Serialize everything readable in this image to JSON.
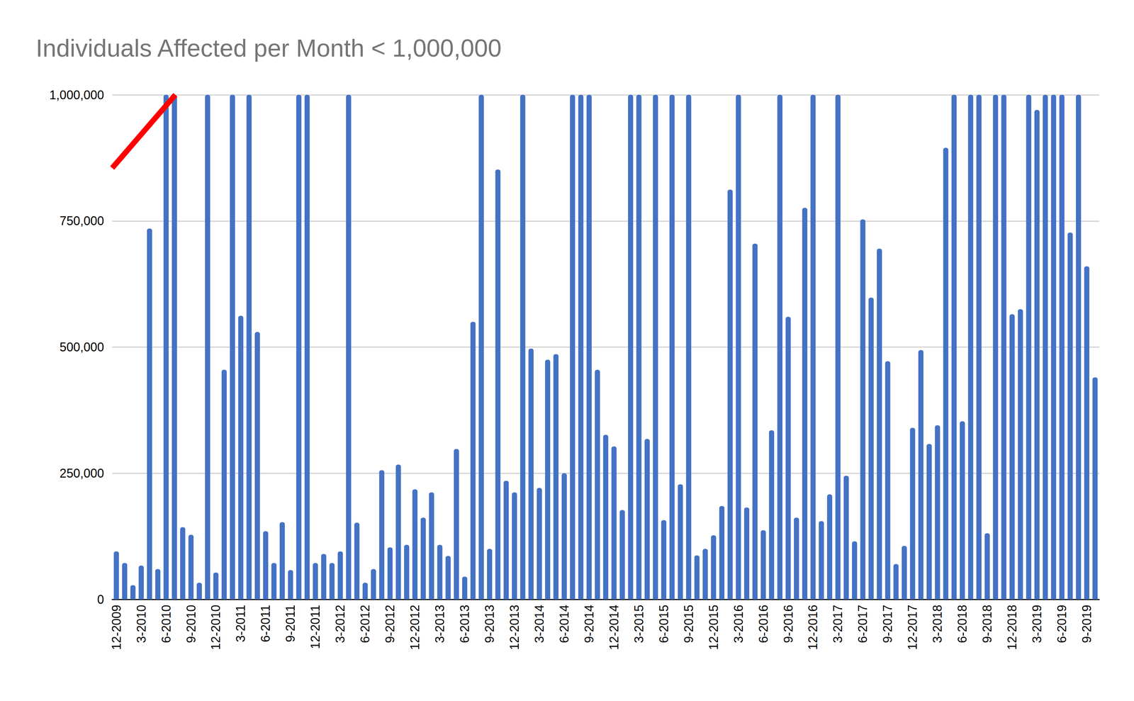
{
  "chart_data": {
    "type": "bar",
    "title": "Individuals Affected per Month < 1,000,000",
    "categories": [
      "12-2009",
      null,
      null,
      "3-2010",
      null,
      null,
      "6-2010",
      null,
      null,
      "9-2010",
      null,
      null,
      "12-2010",
      null,
      null,
      "3-2011",
      null,
      null,
      "6-2011",
      null,
      null,
      "9-2011",
      null,
      null,
      "12-2011",
      null,
      null,
      "3-2012",
      null,
      null,
      "6-2012",
      null,
      null,
      "9-2012",
      null,
      null,
      "12-2012",
      null,
      null,
      "3-2013",
      null,
      null,
      "6-2013",
      null,
      null,
      "9-2013",
      null,
      null,
      "12-2013",
      null,
      null,
      "3-2014",
      null,
      null,
      "6-2014",
      null,
      null,
      "9-2014",
      null,
      null,
      "12-2014",
      null,
      null,
      "3-2015",
      null,
      null,
      "6-2015",
      null,
      null,
      "9-2015",
      null,
      null,
      "12-2015",
      null,
      null,
      "3-2016",
      null,
      null,
      "6-2016",
      null,
      null,
      "9-2016",
      null,
      null,
      "12-2016",
      null,
      null,
      "3-2017",
      null,
      null,
      "6-2017",
      null,
      null,
      "9-2017",
      null,
      null,
      "12-2017",
      null,
      null,
      "3-2018",
      null,
      null,
      "6-2018",
      null,
      null,
      "9-2018",
      null,
      null,
      "12-2018",
      null,
      null,
      "3-2019",
      null,
      null,
      "6-2019",
      null,
      null,
      "9-2019",
      null
    ],
    "values": [
      95000,
      72000,
      28000,
      67000,
      735000,
      60000,
      1000000,
      1000000,
      143000,
      128000,
      33000,
      1000000,
      53000,
      455000,
      1000000,
      562000,
      1000000,
      530000,
      135000,
      72000,
      153000,
      58000,
      1000000,
      1000000,
      72000,
      90000,
      72000,
      95000,
      1000000,
      152000,
      33000,
      60000,
      256000,
      103000,
      267000,
      108000,
      218000,
      162000,
      212000,
      108000,
      86000,
      298000,
      45000,
      550000,
      1000000,
      100000,
      852000,
      235000,
      212000,
      1000000,
      497000,
      221000,
      475000,
      486000,
      250000,
      1000000,
      1000000,
      1000000,
      455000,
      326000,
      303000,
      177000,
      1000000,
      1000000,
      318000,
      1000000,
      157000,
      1000000,
      228000,
      1000000,
      87000,
      100000,
      127000,
      185000,
      812000,
      1000000,
      182000,
      705000,
      137000,
      335000,
      1000000,
      560000,
      162000,
      776000,
      1000000,
      155000,
      208000,
      1000000,
      245000,
      115000,
      753000,
      598000,
      695000,
      472000,
      70000,
      106000,
      340000,
      494000,
      308000,
      345000,
      895000,
      1000000,
      353000,
      1000000,
      1000000,
      131000,
      1000000,
      1000000,
      565000,
      575000,
      1000000,
      970000,
      1000000,
      1000000,
      1000000,
      727000,
      1000000,
      660000,
      440000
    ],
    "color": "#4472c4",
    "ylim": [
      0,
      1000000
    ],
    "yticks": [
      0,
      {
        "value": 250000,
        "label": "250,000"
      },
      {
        "value": 500000,
        "label": "500,000"
      },
      {
        "value": 750000,
        "label": "750,000"
      },
      {
        "value": 1000000,
        "label": "1,000,000"
      }
    ],
    "grid": true
  }
}
